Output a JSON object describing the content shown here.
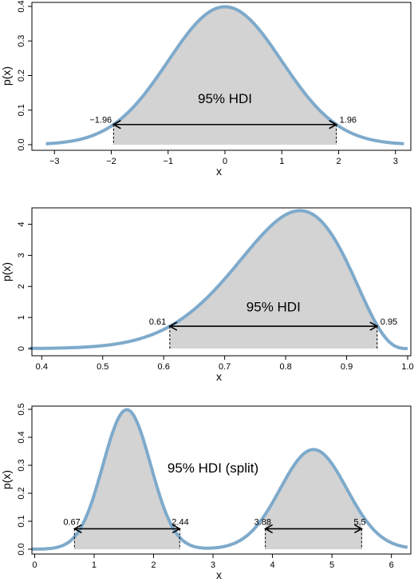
{
  "chart_data": [
    {
      "type": "area",
      "distribution": "normal",
      "params": {
        "mean": 0,
        "sd": 1
      },
      "xlabel": "x",
      "ylabel": "p(x)",
      "xlim": [
        -3.2,
        3.2
      ],
      "ylim": [
        0,
        0.4
      ],
      "xticks": [
        -3,
        -2,
        -1,
        0,
        1,
        2,
        3
      ],
      "xtick_labels": [
        "−3",
        "−2",
        "−1",
        "0",
        "1",
        "2",
        "3"
      ],
      "yticks": [
        0,
        0.1,
        0.2,
        0.3,
        0.4
      ],
      "ytick_labels": [
        "0.0",
        "0.1",
        "0.2",
        "0.3",
        "0.4"
      ],
      "hdi_label": "95% HDI",
      "hdi_intervals": [
        [
          -1.96,
          1.96
        ]
      ],
      "hdi_bound_labels": [
        "−1.96",
        "1.96"
      ],
      "hdi_height": 0.0584
    },
    {
      "type": "area",
      "distribution": "beta",
      "params": {
        "a": 15,
        "b": 4
      },
      "xlabel": "x",
      "ylabel": "p(x)",
      "xlim": [
        0.38,
        1.0
      ],
      "ylim": [
        0,
        4.4
      ],
      "xticks": [
        0.4,
        0.5,
        0.6,
        0.7,
        0.8,
        0.9,
        1.0
      ],
      "xtick_labels": [
        "0.4",
        "0.5",
        "0.6",
        "0.7",
        "0.8",
        "0.9",
        "1.0"
      ],
      "yticks": [
        0,
        1,
        2,
        3,
        4
      ],
      "ytick_labels": [
        "0",
        "1",
        "2",
        "3",
        "4"
      ],
      "hdi_label": "95% HDI",
      "hdi_intervals": [
        [
          0.61,
          0.95
        ]
      ],
      "hdi_bound_labels": [
        "0.61",
        "0.95"
      ],
      "hdi_height": 0.72
    },
    {
      "type": "area",
      "distribution": "bimodal normal mixture",
      "params": {
        "components": [
          {
            "weight": 0.5,
            "mean": 1.55,
            "sd": 0.4
          },
          {
            "weight": 0.5,
            "mean": 4.69,
            "sd": 0.56
          }
        ]
      },
      "xlabel": "x",
      "ylabel": "p(x)",
      "xlim": [
        0,
        6.2
      ],
      "ylim": [
        0,
        0.5
      ],
      "xticks": [
        0,
        1,
        2,
        3,
        4,
        5,
        6
      ],
      "xtick_labels": [
        "0",
        "1",
        "2",
        "3",
        "4",
        "5",
        "6"
      ],
      "yticks": [
        0,
        0.1,
        0.2,
        0.3,
        0.4,
        0.5
      ],
      "ytick_labels": [
        "0.0",
        "0.1",
        "0.2",
        "0.3",
        "0.4",
        "0.5"
      ],
      "hdi_label": "95% HDI (split)",
      "hdi_intervals": [
        [
          0.67,
          2.44
        ],
        [
          3.88,
          5.5
        ]
      ],
      "hdi_bound_labels": [
        "0.67",
        "2.44",
        "3.88",
        "5.5"
      ],
      "hdi_height": 0.073
    }
  ],
  "colors": {
    "curve": "#7eaacb",
    "shade": "#d3d3d4"
  }
}
